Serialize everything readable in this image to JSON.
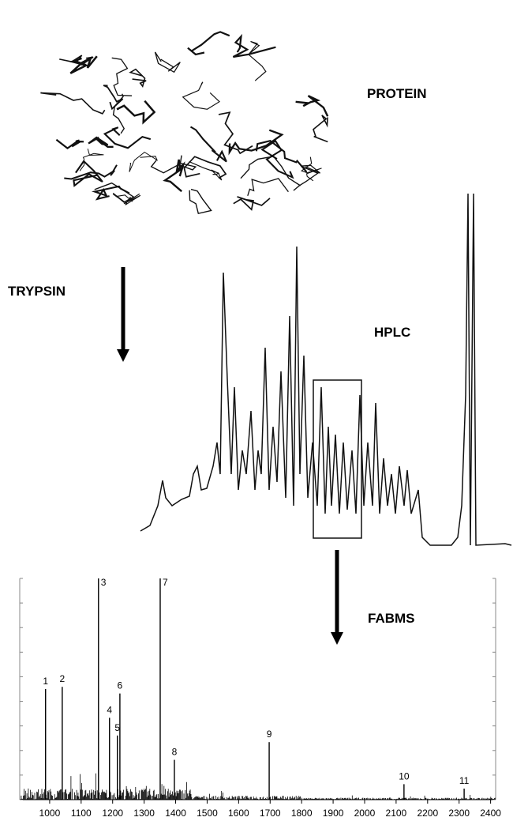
{
  "labels": {
    "protein": "PROTEIN",
    "trypsin": "TRYPSIN",
    "hplc": "HPLC",
    "fabms": "FABMS"
  },
  "spectrum": {
    "xlim": [
      905,
      2416
    ],
    "ylim": [
      0,
      100
    ],
    "xticks": [
      1000,
      1100,
      1200,
      1300,
      1400,
      1500,
      1600,
      1700,
      1800,
      1900,
      2000,
      2100,
      2200,
      2300,
      2400
    ],
    "peaks": [
      {
        "label": "1",
        "mz": 987,
        "intensity": 50
      },
      {
        "label": "2",
        "mz": 1040,
        "intensity": 51
      },
      {
        "label": "3",
        "mz": 1155,
        "intensity": 100
      },
      {
        "label": "4",
        "mz": 1190,
        "intensity": 37
      },
      {
        "label": "5",
        "mz": 1215,
        "intensity": 29
      },
      {
        "label": "6",
        "mz": 1223,
        "intensity": 48
      },
      {
        "label": "7",
        "mz": 1351,
        "intensity": 100
      },
      {
        "label": "8",
        "mz": 1396,
        "intensity": 18
      },
      {
        "label": "9",
        "mz": 1697,
        "intensity": 26
      },
      {
        "label": "10",
        "mz": 2125,
        "intensity": 7
      },
      {
        "label": "11",
        "mz": 2316,
        "intensity": 5
      }
    ]
  }
}
